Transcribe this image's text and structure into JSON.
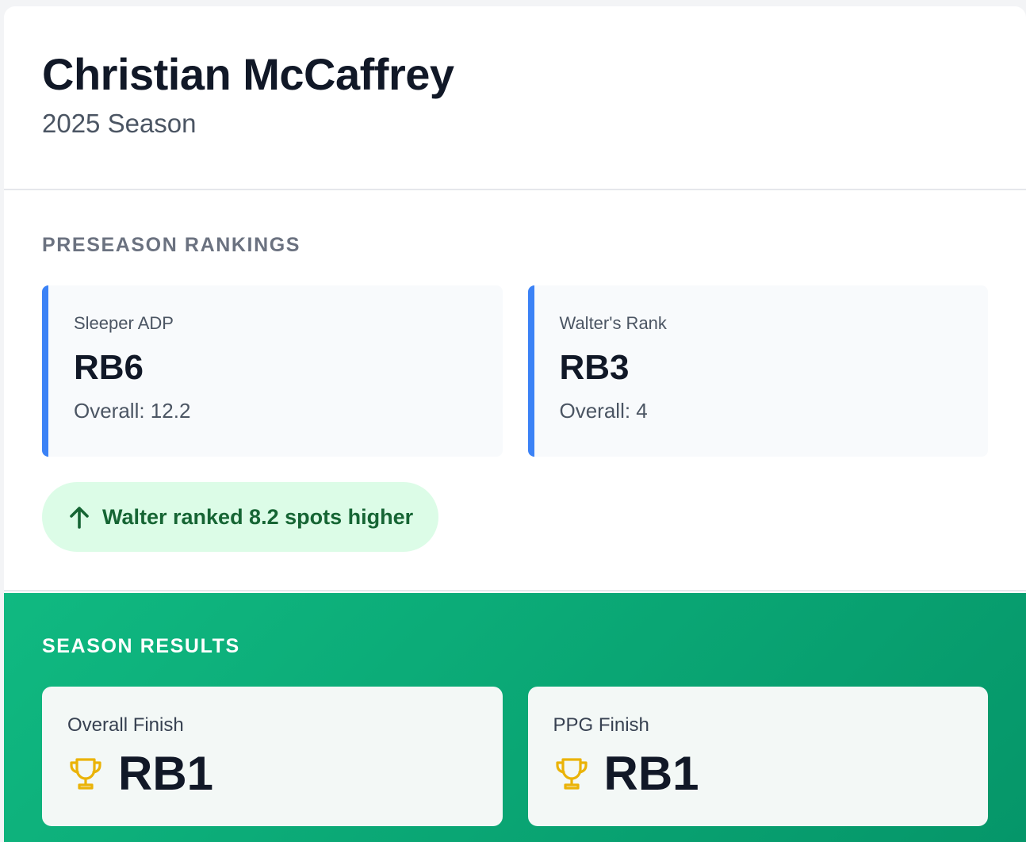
{
  "header": {
    "player_name": "Christian McCaffrey",
    "season": "2025 Season"
  },
  "preseason": {
    "title": "PRESEASON RANKINGS",
    "cards": [
      {
        "label": "Sleeper ADP",
        "rank": "RB6",
        "overall": "Overall: 12.2"
      },
      {
        "label": "Walter's Rank",
        "rank": "RB3",
        "overall": "Overall: 4"
      }
    ],
    "difference": {
      "icon": "arrow-up-icon",
      "text": "Walter ranked 8.2 spots higher"
    }
  },
  "results": {
    "title": "SEASON RESULTS",
    "cards": [
      {
        "label": "Overall Finish",
        "icon": "trophy-icon",
        "value": "RB1"
      },
      {
        "label": "PPG Finish",
        "icon": "trophy-icon",
        "value": "RB1"
      }
    ]
  },
  "colors": {
    "accent_blue": "#3b82f6",
    "success_green": "#10b981",
    "pill_bg": "#dcfce7",
    "pill_text": "#166534",
    "trophy": "#eab308"
  }
}
